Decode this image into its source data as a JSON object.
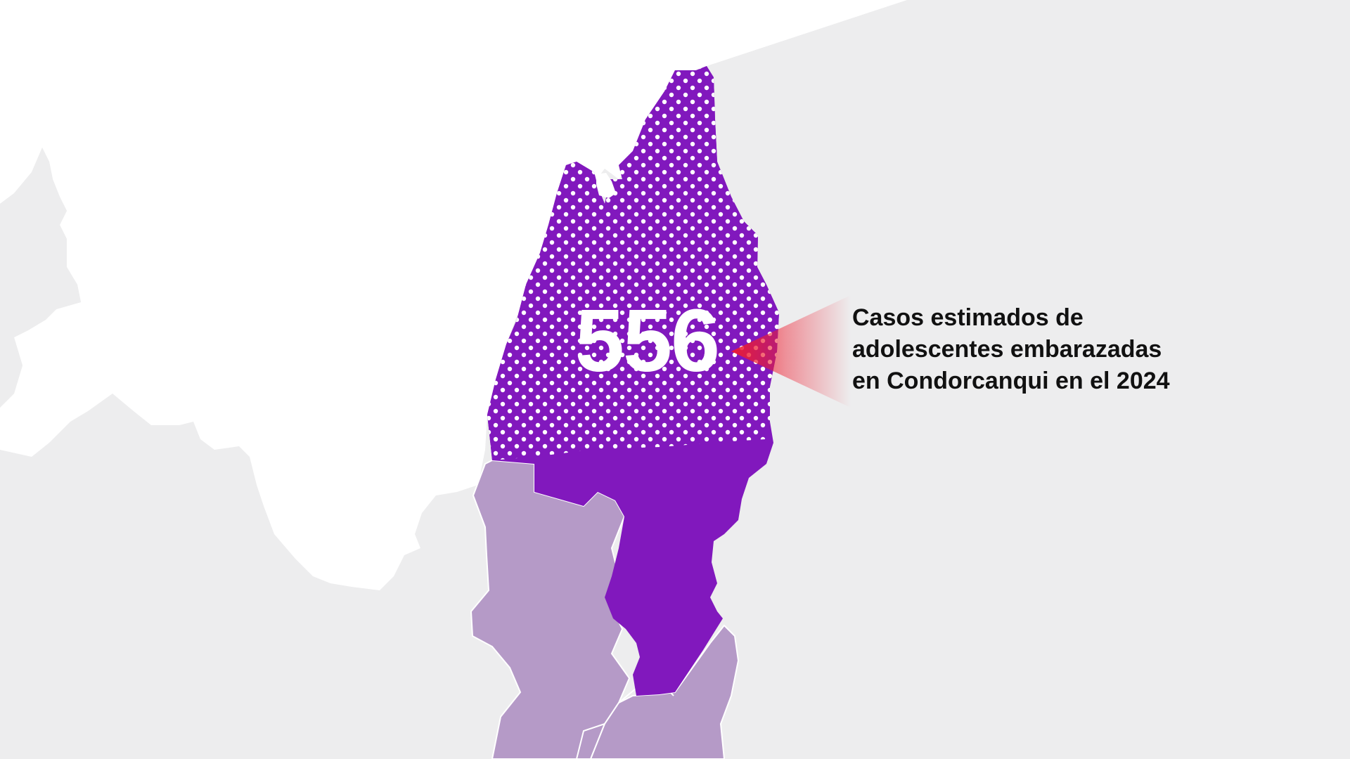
{
  "highlight": {
    "value": "556",
    "label_lines": [
      "Casos estimados de",
      "adolescentes embarazadas",
      "en Condorcanqui en el 2024"
    ]
  },
  "colors": {
    "background_land": "#ededee",
    "outside_land": "#ffffff",
    "highlight_region": "#8118bd",
    "neighbor_regions": "#b59ac7",
    "pattern_dots": "#ffffff",
    "pointer": "#ee1d2f",
    "text_dark": "#111111"
  }
}
